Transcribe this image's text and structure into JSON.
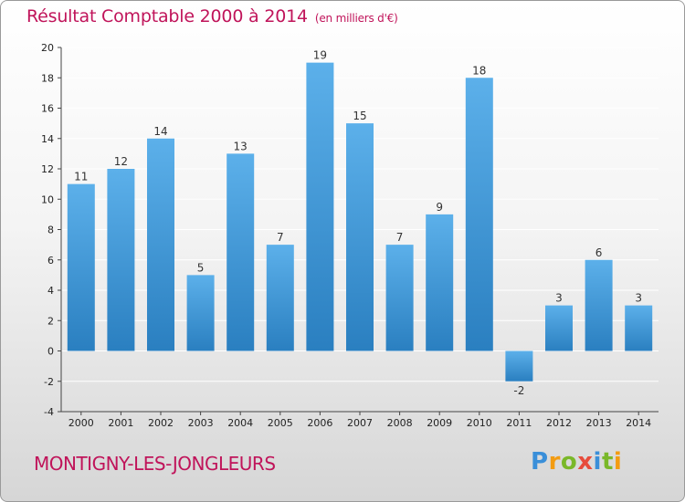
{
  "title": "Résultat Comptable 2000 à 2014",
  "unit": "(en milliers d'€)",
  "commune": "MONTIGNY-LES-JONGLEURS",
  "logo": {
    "letters": [
      "P",
      "r",
      "o",
      "x",
      "i",
      "t",
      "i"
    ],
    "colors": [
      "#3a8fd9",
      "#f39c12",
      "#7ab829",
      "#e74c3c",
      "#3a8fd9",
      "#7ab829",
      "#f39c12"
    ]
  },
  "colors": {
    "title": "#c0145a",
    "bar_light": "#5cb0ea",
    "bar_dark": "#2a7fc0",
    "grid": "#ffffff",
    "axis": "#444444"
  },
  "chart_data": {
    "type": "bar",
    "title": "Résultat Comptable 2000 à 2014",
    "xlabel": "",
    "ylabel": "(en milliers d'€)",
    "categories": [
      "2000",
      "2001",
      "2002",
      "2003",
      "2004",
      "2005",
      "2006",
      "2007",
      "2008",
      "2009",
      "2010",
      "2011",
      "2012",
      "2013",
      "2014"
    ],
    "values": [
      11,
      12,
      14,
      5,
      13,
      7,
      19,
      15,
      7,
      9,
      18,
      -2,
      3,
      6,
      3
    ],
    "ylim": [
      -4,
      20
    ],
    "yticks": [
      -4,
      -2,
      0,
      2,
      4,
      6,
      8,
      10,
      12,
      14,
      16,
      18,
      20
    ],
    "grid": true
  }
}
